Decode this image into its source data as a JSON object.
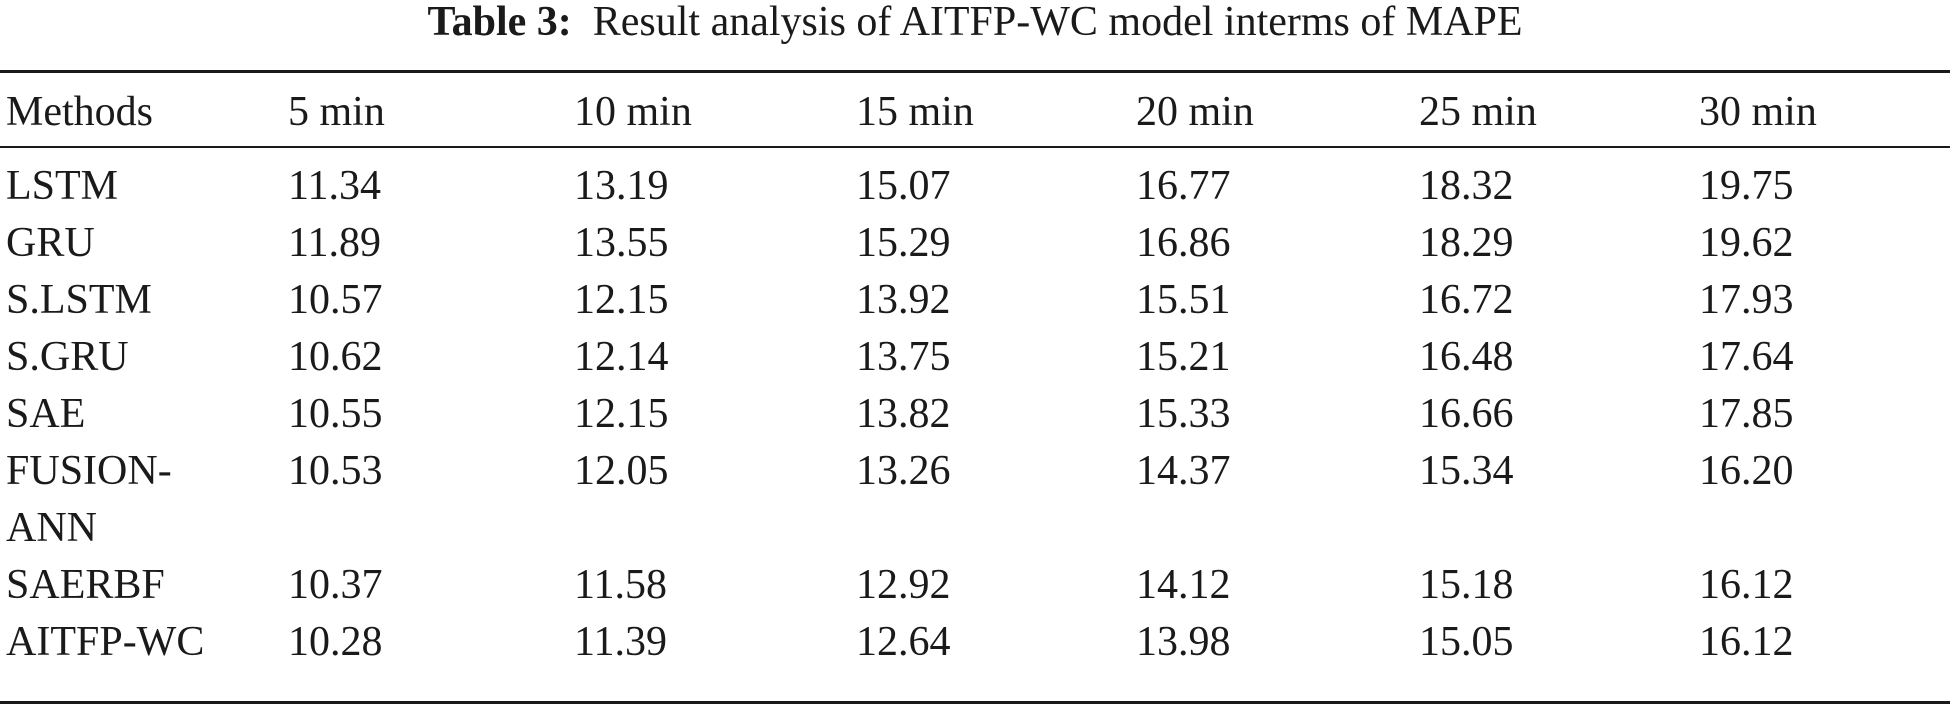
{
  "caption": {
    "label": "Table 3:",
    "text": "Result analysis of AITFP-WC model interms of MAPE"
  },
  "table": {
    "headers": [
      "Methods",
      "5 min",
      "10 min",
      "15 min",
      "20 min",
      "25 min",
      "30 min"
    ],
    "rows": [
      {
        "method": "LSTM",
        "values": [
          "11.34",
          "13.19",
          "15.07",
          "16.77",
          "18.32",
          "19.75"
        ]
      },
      {
        "method": "GRU",
        "values": [
          "11.89",
          "13.55",
          "15.29",
          "16.86",
          "18.29",
          "19.62"
        ]
      },
      {
        "method": "S.LSTM",
        "values": [
          "10.57",
          "12.15",
          "13.92",
          "15.51",
          "16.72",
          "17.93"
        ]
      },
      {
        "method": "S.GRU",
        "values": [
          "10.62",
          "12.14",
          "13.75",
          "15.21",
          "16.48",
          "17.64"
        ]
      },
      {
        "method": "SAE",
        "values": [
          "10.55",
          "12.15",
          "13.82",
          "15.33",
          "16.66",
          "17.85"
        ]
      },
      {
        "method": "FUSION-ANN",
        "method_lines": [
          "FUSION-",
          "ANN"
        ],
        "values": [
          "10.53",
          "12.05",
          "13.26",
          "14.37",
          "15.34",
          "16.20"
        ]
      },
      {
        "method": "SAERBF",
        "values": [
          "10.37",
          "11.58",
          "12.92",
          "14.12",
          "15.18",
          "16.12"
        ]
      },
      {
        "method": "AITFP-WC",
        "values": [
          "10.28",
          "11.39",
          "12.64",
          "13.98",
          "15.05",
          "16.12"
        ]
      }
    ]
  }
}
